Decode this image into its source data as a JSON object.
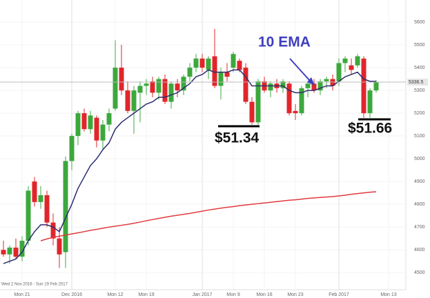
{
  "chart_data": {
    "type": "candlestick",
    "date_range": "Wed 2 Nov 2016 - Sun 19 Feb 2017",
    "categories": [
      null,
      null,
      null,
      "Mon 21",
      null,
      null,
      null,
      null,
      null,
      null,
      null,
      "Dec 2016",
      null,
      null,
      null,
      null,
      null,
      null,
      "Mon 12",
      null,
      null,
      null,
      null,
      "Mon 19",
      null,
      null,
      null,
      null,
      null,
      null,
      null,
      null,
      "Jan 2017",
      null,
      null,
      null,
      null,
      "Mon 9",
      null,
      null,
      null,
      null,
      "Mon 16",
      null,
      null,
      null,
      null,
      "Mon 23",
      null,
      null,
      null,
      null,
      null,
      null,
      "Feb 2017",
      null,
      null,
      null,
      null,
      null,
      null,
      null,
      "Mon 13"
    ],
    "open": [
      4600,
      4580,
      4610,
      4570,
      4640,
      4900,
      4810,
      4840,
      4720,
      4650,
      4590,
      4990,
      5100,
      5200,
      5130,
      5180,
      5080,
      5150,
      5220,
      5400,
      5300,
      5210,
      5290,
      5320,
      5340,
      5290,
      5350,
      5250,
      5330,
      5300,
      5360,
      5400,
      5440,
      5390,
      5450,
      5320,
      5380,
      5400,
      5430,
      5400,
      5250,
      5160,
      5340,
      5300,
      5330,
      5310,
      5330,
      5210,
      5200,
      5310,
      5330,
      5300,
      5340,
      5350,
      5340,
      5420,
      5410,
      5410,
      5440,
      5200,
      5300,
      null,
      null
    ],
    "high": [
      4640,
      4620,
      4650,
      4660,
      4880,
      4920,
      4880,
      4860,
      4760,
      4700,
      5010,
      5110,
      5210,
      5220,
      5210,
      5190,
      5170,
      5220,
      5520,
      5500,
      5340,
      5320,
      5340,
      5350,
      5360,
      5360,
      5370,
      5340,
      5350,
      5370,
      5420,
      5460,
      5460,
      5450,
      5570,
      5400,
      5420,
      5470,
      5440,
      5420,
      5270,
      5350,
      5360,
      5340,
      5350,
      5350,
      5340,
      5240,
      5320,
      5340,
      5350,
      5350,
      5360,
      5370,
      5440,
      5450,
      5440,
      5460,
      5450,
      5310,
      5345,
      null,
      null
    ],
    "low": [
      4570,
      4540,
      4560,
      4550,
      4620,
      4790,
      4780,
      4700,
      4620,
      4520,
      4520,
      4950,
      5060,
      5120,
      5110,
      5050,
      5040,
      5120,
      5210,
      5280,
      5200,
      5110,
      5160,
      5280,
      5270,
      5260,
      5240,
      5220,
      5270,
      5280,
      5340,
      5380,
      5380,
      5350,
      5310,
      5260,
      5340,
      5380,
      5380,
      5240,
      5150,
      5150,
      5290,
      5270,
      5290,
      5290,
      5190,
      5170,
      5190,
      5270,
      5290,
      5280,
      5310,
      5300,
      5320,
      5380,
      5370,
      5400,
      5180,
      5180,
      5290,
      null,
      null
    ],
    "close": [
      4580,
      4610,
      4570,
      4640,
      4860,
      4810,
      4840,
      4720,
      4650,
      4580,
      4990,
      5100,
      5200,
      5130,
      5190,
      5080,
      5150,
      5200,
      5400,
      5300,
      5210,
      5300,
      5320,
      5330,
      5290,
      5350,
      5250,
      5330,
      5300,
      5360,
      5400,
      5440,
      5400,
      5440,
      5320,
      5380,
      5360,
      5460,
      5390,
      5250,
      5160,
      5340,
      5300,
      5330,
      5310,
      5340,
      5200,
      5200,
      5310,
      5330,
      5300,
      5340,
      5350,
      5320,
      5420,
      5440,
      5390,
      5450,
      5200,
      5300,
      5336.5,
      null,
      null
    ],
    "up_color": "#3ca83c",
    "down_color": "#e0262b",
    "lines": [
      {
        "color": "#2b2c6e",
        "values": [
          4540,
          4550,
          4560,
          4590,
          4640,
          4680,
          4710,
          4710,
          4700,
          4680,
          4740,
          4800,
          4870,
          4920,
          4970,
          5000,
          5040,
          5070,
          5130,
          5160,
          5180,
          5200,
          5220,
          5240,
          5250,
          5270,
          5270,
          5280,
          5290,
          5310,
          5330,
          5360,
          5370,
          5390,
          5380,
          5380,
          5380,
          5390,
          5390,
          5360,
          5320,
          5320,
          5320,
          5320,
          5320,
          5320,
          5300,
          5290,
          5290,
          5300,
          5300,
          5310,
          5320,
          5320,
          5340,
          5360,
          5370,
          5380,
          5350,
          5340,
          5340,
          null,
          null
        ]
      },
      {
        "color": "#e0393e",
        "values": [
          null,
          null,
          null,
          null,
          null,
          null,
          4640,
          4648,
          4655,
          4660,
          4665,
          4670,
          4675,
          4680,
          4686,
          4690,
          4695,
          4700,
          4704,
          4708,
          4712,
          4717,
          4722,
          4728,
          4733,
          4738,
          4743,
          4748,
          4752,
          4756,
          4760,
          4765,
          4770,
          4775,
          4779,
          4783,
          4787,
          4790,
          4794,
          4797,
          4800,
          4803,
          4806,
          4809,
          4812,
          4815,
          4818,
          4820,
          4823,
          4826,
          4828,
          4830,
          4832,
          4834,
          4837,
          4840,
          4844,
          4847,
          4850,
          4853,
          4855,
          null,
          null
        ]
      }
    ],
    "last_price": 5336.5,
    "ylim": [
      4425,
      5697
    ],
    "yticks": [
      4500,
      4600,
      4700,
      4800,
      4900,
      5000,
      5100,
      5200,
      5300,
      5400,
      5500,
      5600
    ],
    "annotations": [
      "10 EMA",
      "$51.34",
      "$51.66"
    ]
  }
}
